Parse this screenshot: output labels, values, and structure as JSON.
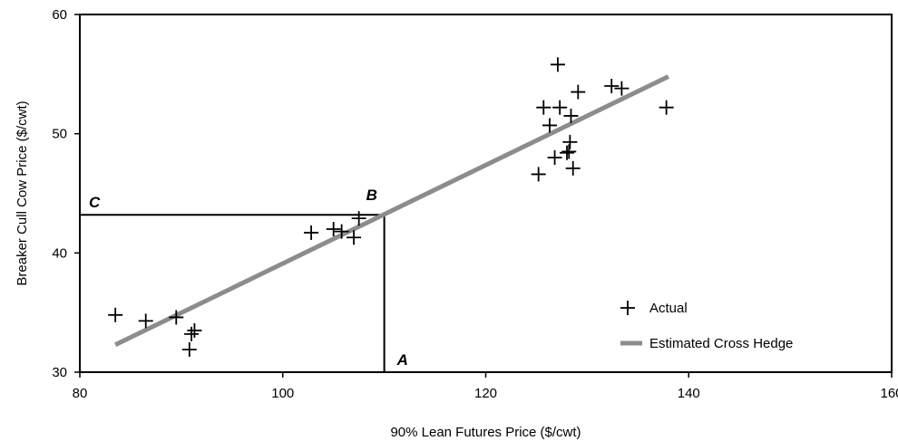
{
  "chart_data": {
    "type": "scatter",
    "title": "",
    "xlabel": "90% Lean Futures Price ($/cwt)",
    "ylabel": "Breaker Cull Cow Price ($/cwt)",
    "xlim": [
      80,
      160
    ],
    "ylim": [
      30,
      60
    ],
    "xticks": [
      "80",
      "100",
      "120",
      "140",
      "160"
    ],
    "yticks": [
      "30",
      "40",
      "50",
      "60"
    ],
    "grid": false,
    "legend_position": "bottom-right",
    "series": [
      {
        "name": "Actual",
        "marker": "plus",
        "color": "#000000",
        "points": [
          [
            83.5,
            34.8
          ],
          [
            86.5,
            34.3
          ],
          [
            89.5,
            34.6
          ],
          [
            90.8,
            31.9
          ],
          [
            91.0,
            33.2
          ],
          [
            91.3,
            33.5
          ],
          [
            102.8,
            41.7
          ],
          [
            105.0,
            42.0
          ],
          [
            105.8,
            41.8
          ],
          [
            107.0,
            41.3
          ],
          [
            107.5,
            42.9
          ],
          [
            125.2,
            46.6
          ],
          [
            125.7,
            52.2
          ],
          [
            126.3,
            50.7
          ],
          [
            127.1,
            55.8
          ],
          [
            127.3,
            52.2
          ],
          [
            126.8,
            48.0
          ],
          [
            128.0,
            48.4
          ],
          [
            128.2,
            48.5
          ],
          [
            128.3,
            49.3
          ],
          [
            128.4,
            51.5
          ],
          [
            128.6,
            47.1
          ],
          [
            129.1,
            53.5
          ],
          [
            132.4,
            54.0
          ],
          [
            133.4,
            53.8
          ],
          [
            137.8,
            52.2
          ]
        ]
      },
      {
        "name": "Estimated Cross Hedge",
        "type": "line",
        "color": "#8c8c8c",
        "x": [
          83.5,
          138.0
        ],
        "y": [
          32.3,
          54.8
        ]
      }
    ],
    "annotations": [
      {
        "label": "A",
        "x": 110.0,
        "y": 30.0
      },
      {
        "label": "B",
        "x": 110.0,
        "y": 43.2
      },
      {
        "label": "C",
        "x": 80.0,
        "y": 43.2
      }
    ]
  }
}
